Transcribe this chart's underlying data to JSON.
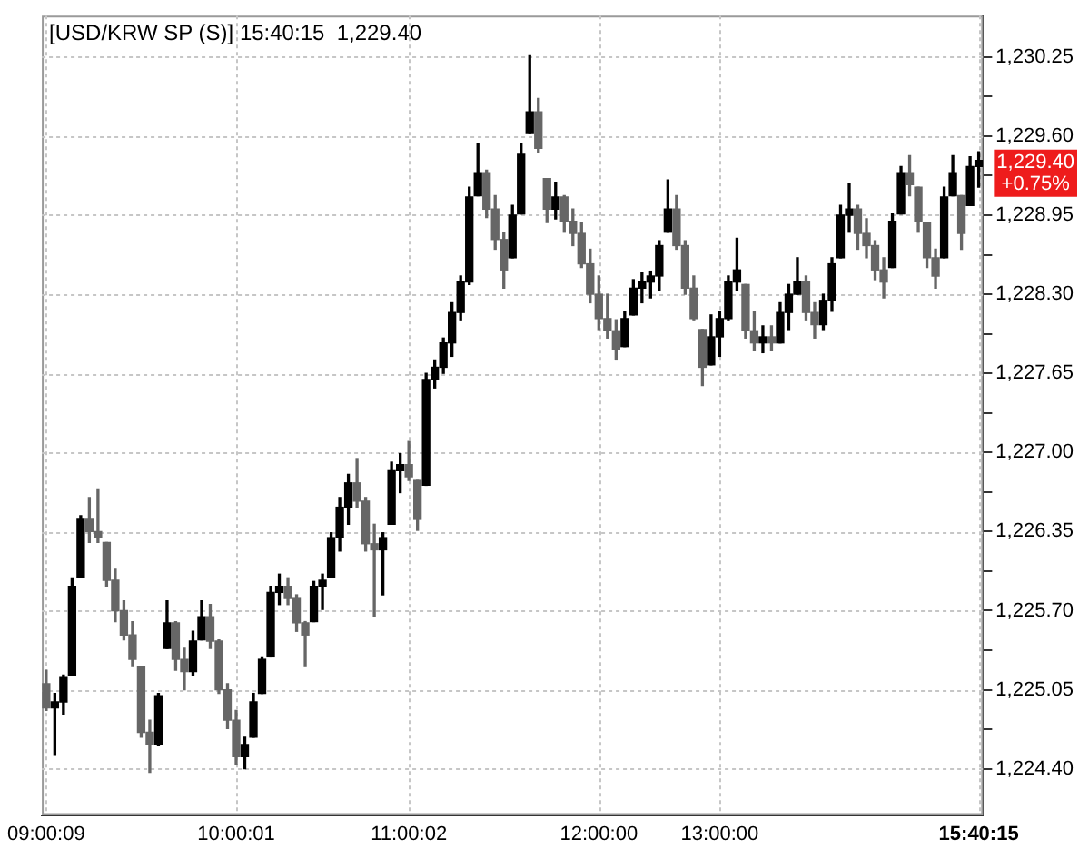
{
  "chart_data": {
    "type": "candlestick",
    "title": "[USD/KRW SP (S)] 15:40:15  1,229.40",
    "categories": [
      "09:00:09",
      null,
      null,
      null,
      null,
      null,
      null,
      null,
      null,
      null,
      null,
      null,
      null,
      null,
      null,
      null,
      null,
      null,
      null,
      null,
      null,
      null,
      "10:00:01",
      null,
      null,
      null,
      null,
      null,
      null,
      null,
      null,
      null,
      null,
      null,
      null,
      null,
      null,
      null,
      null,
      null,
      null,
      null,
      "11:00:02",
      null,
      null,
      null,
      null,
      null,
      null,
      null,
      null,
      null,
      null,
      null,
      null,
      null,
      null,
      null,
      null,
      null,
      null,
      null,
      null,
      null,
      "12:00:00",
      null,
      null,
      null,
      null,
      null,
      null,
      null,
      null,
      null,
      null,
      null,
      null,
      null,
      "13:00:00",
      null,
      null,
      null,
      null,
      null,
      null,
      null,
      null,
      null,
      null,
      null,
      null,
      null,
      null,
      null,
      null,
      null,
      null,
      null,
      null,
      null,
      null,
      null,
      null,
      null,
      null,
      null,
      null,
      null,
      "15:40:15"
    ],
    "ohlc": [
      [
        1225.1,
        1225.21,
        1224.88,
        1224.9
      ],
      [
        1224.9,
        1225.02,
        1224.51,
        1224.95
      ],
      [
        1224.95,
        1225.17,
        1224.85,
        1225.15
      ],
      [
        1225.17,
        1225.97,
        1225.17,
        1225.9
      ],
      [
        1225.97,
        1226.48,
        1225.97,
        1226.45
      ],
      [
        1226.45,
        1226.63,
        1226.26,
        1226.35
      ],
      [
        1226.35,
        1226.7,
        1226.26,
        1226.3
      ],
      [
        1226.26,
        1226.26,
        1225.9,
        1225.95
      ],
      [
        1225.95,
        1226.04,
        1225.61,
        1225.7
      ],
      [
        1225.7,
        1225.78,
        1225.46,
        1225.5
      ],
      [
        1225.5,
        1225.61,
        1225.24,
        1225.3
      ],
      [
        1225.24,
        1225.24,
        1224.66,
        1224.7
      ],
      [
        1224.7,
        1224.8,
        1224.37,
        1224.6
      ],
      [
        1224.6,
        1225.02,
        1224.59,
        1225.0
      ],
      [
        1225.39,
        1225.78,
        1225.39,
        1225.6
      ],
      [
        1225.6,
        1225.61,
        1225.21,
        1225.3
      ],
      [
        1225.3,
        1225.39,
        1225.05,
        1225.2
      ],
      [
        1225.2,
        1225.53,
        1225.17,
        1225.45
      ],
      [
        1225.46,
        1225.78,
        1225.46,
        1225.65
      ],
      [
        1225.65,
        1225.75,
        1225.39,
        1225.45
      ],
      [
        1225.45,
        1225.46,
        1225.02,
        1225.05
      ],
      [
        1225.05,
        1225.1,
        1224.73,
        1224.8
      ],
      [
        1224.8,
        1224.88,
        1224.44,
        1224.5
      ],
      [
        1224.5,
        1224.66,
        1224.4,
        1224.6
      ],
      [
        1224.66,
        1225.02,
        1224.66,
        1224.95
      ],
      [
        1225.02,
        1225.32,
        1225.02,
        1225.3
      ],
      [
        1225.32,
        1225.9,
        1225.32,
        1225.85
      ],
      [
        1225.85,
        1226.0,
        1225.75,
        1225.9
      ],
      [
        1225.9,
        1225.97,
        1225.75,
        1225.8
      ],
      [
        1225.8,
        1225.83,
        1225.53,
        1225.6
      ],
      [
        1225.6,
        1225.61,
        1225.24,
        1225.5
      ],
      [
        1225.61,
        1225.94,
        1225.61,
        1225.9
      ],
      [
        1225.9,
        1226.0,
        1225.71,
        1225.95
      ],
      [
        1225.97,
        1226.34,
        1225.97,
        1226.3
      ],
      [
        1226.3,
        1226.63,
        1226.19,
        1226.55
      ],
      [
        1226.55,
        1226.82,
        1226.41,
        1226.75
      ],
      [
        1226.75,
        1226.95,
        1226.55,
        1226.6
      ],
      [
        1226.6,
        1226.63,
        1226.19,
        1226.25
      ],
      [
        1226.25,
        1226.41,
        1225.65,
        1226.2
      ],
      [
        1226.2,
        1226.34,
        1225.83,
        1226.3
      ],
      [
        1226.41,
        1226.92,
        1226.41,
        1226.85
      ],
      [
        1226.85,
        1226.99,
        1226.67,
        1226.9
      ],
      [
        1226.9,
        1227.09,
        1226.77,
        1226.8
      ],
      [
        1226.77,
        1226.77,
        1226.36,
        1226.45
      ],
      [
        1226.73,
        1227.65,
        1226.73,
        1227.6
      ],
      [
        1227.6,
        1227.76,
        1227.53,
        1227.7
      ],
      [
        1227.7,
        1227.94,
        1227.65,
        1227.9
      ],
      [
        1227.9,
        1228.23,
        1227.79,
        1228.15
      ],
      [
        1228.15,
        1228.45,
        1228.09,
        1228.4
      ],
      [
        1228.4,
        1229.18,
        1228.38,
        1229.1
      ],
      [
        1229.11,
        1229.54,
        1229.11,
        1229.3
      ],
      [
        1229.3,
        1229.32,
        1228.93,
        1229.0
      ],
      [
        1229.0,
        1229.11,
        1228.67,
        1228.75
      ],
      [
        1228.75,
        1228.81,
        1228.35,
        1228.5
      ],
      [
        1228.6,
        1229.03,
        1228.6,
        1228.95
      ],
      [
        1228.96,
        1229.54,
        1228.96,
        1229.45
      ],
      [
        1229.62,
        1230.26,
        1229.62,
        1229.8
      ],
      [
        1229.8,
        1229.91,
        1229.47,
        1229.5
      ],
      [
        1229.25,
        1229.25,
        1228.89,
        1229.0
      ],
      [
        1229.0,
        1229.22,
        1228.92,
        1229.1
      ],
      [
        1229.1,
        1229.11,
        1228.81,
        1228.9
      ],
      [
        1228.9,
        1229.0,
        1228.7,
        1228.8
      ],
      [
        1228.8,
        1228.89,
        1228.52,
        1228.55
      ],
      [
        1228.55,
        1228.67,
        1228.23,
        1228.3
      ],
      [
        1228.3,
        1228.45,
        1228.01,
        1228.1
      ],
      [
        1228.1,
        1228.3,
        1227.94,
        1228.0
      ],
      [
        1228.0,
        1228.09,
        1227.76,
        1227.85
      ],
      [
        1227.87,
        1228.16,
        1227.87,
        1228.1
      ],
      [
        1228.13,
        1228.42,
        1228.13,
        1228.35
      ],
      [
        1228.35,
        1228.48,
        1228.23,
        1228.4
      ],
      [
        1228.4,
        1228.49,
        1228.27,
        1228.45
      ],
      [
        1228.45,
        1228.74,
        1228.33,
        1228.7
      ],
      [
        1228.81,
        1229.24,
        1228.81,
        1229.0
      ],
      [
        1229.0,
        1229.11,
        1228.67,
        1228.7
      ],
      [
        1228.7,
        1228.74,
        1228.3,
        1228.35
      ],
      [
        1228.35,
        1228.45,
        1228.09,
        1228.1
      ],
      [
        1228.01,
        1228.01,
        1227.55,
        1227.7
      ],
      [
        1227.72,
        1228.13,
        1227.72,
        1227.95
      ],
      [
        1227.95,
        1228.16,
        1227.79,
        1228.1
      ],
      [
        1228.1,
        1228.45,
        1228.09,
        1228.4
      ],
      [
        1228.4,
        1228.76,
        1228.33,
        1228.5
      ],
      [
        1228.38,
        1228.38,
        1227.94,
        1228.0
      ],
      [
        1228.0,
        1228.16,
        1227.84,
        1227.9
      ],
      [
        1227.9,
        1228.04,
        1227.82,
        1227.95
      ],
      [
        1227.95,
        1228.04,
        1227.84,
        1227.9
      ],
      [
        1227.9,
        1228.23,
        1227.9,
        1228.15
      ],
      [
        1228.15,
        1228.38,
        1228.01,
        1228.3
      ],
      [
        1228.3,
        1228.6,
        1228.3,
        1228.4
      ],
      [
        1228.4,
        1228.45,
        1228.09,
        1228.15
      ],
      [
        1228.15,
        1228.23,
        1227.94,
        1228.05
      ],
      [
        1228.05,
        1228.3,
        1228.01,
        1228.25
      ],
      [
        1228.25,
        1228.6,
        1228.16,
        1228.55
      ],
      [
        1228.6,
        1229.03,
        1228.6,
        1228.95
      ],
      [
        1228.95,
        1229.21,
        1228.81,
        1229.0
      ],
      [
        1229.0,
        1229.03,
        1228.67,
        1228.8
      ],
      [
        1228.8,
        1228.92,
        1228.6,
        1228.7
      ],
      [
        1228.7,
        1228.74,
        1228.42,
        1228.5
      ],
      [
        1228.5,
        1228.6,
        1228.27,
        1228.4
      ],
      [
        1228.52,
        1228.96,
        1228.52,
        1228.9
      ],
      [
        1228.96,
        1229.35,
        1228.96,
        1229.3
      ],
      [
        1229.3,
        1229.44,
        1229.11,
        1229.2
      ],
      [
        1229.18,
        1229.18,
        1228.81,
        1228.9
      ],
      [
        1228.89,
        1228.89,
        1228.52,
        1228.6
      ],
      [
        1228.6,
        1228.67,
        1228.35,
        1228.45
      ],
      [
        1228.6,
        1229.18,
        1228.6,
        1229.1
      ],
      [
        1229.11,
        1229.44,
        1229.11,
        1229.3
      ],
      [
        1229.11,
        1229.11,
        1228.67,
        1228.8
      ],
      [
        1229.03,
        1229.43,
        1229.03,
        1229.35
      ],
      [
        1229.35,
        1229.47,
        1229.18,
        1229.4
      ]
    ],
    "colors": [
      "#666666",
      "#000000",
      "#000000",
      "#000000",
      "#000000",
      "#666666",
      "#666666",
      "#666666",
      "#666666",
      "#666666",
      "#666666",
      "#666666",
      "#666666",
      "#000000",
      "#000000",
      "#666666",
      "#666666",
      "#000000",
      "#000000",
      "#666666",
      "#666666",
      "#666666",
      "#666666",
      "#000000",
      "#000000",
      "#000000",
      "#000000",
      "#000000",
      "#666666",
      "#666666",
      "#666666",
      "#000000",
      "#000000",
      "#000000",
      "#000000",
      "#000000",
      "#666666",
      "#666666",
      "#666666",
      "#000000",
      "#000000",
      "#000000",
      "#666666",
      "#666666",
      "#000000",
      "#000000",
      "#000000",
      "#000000",
      "#000000",
      "#000000",
      "#000000",
      "#666666",
      "#666666",
      "#666666",
      "#000000",
      "#000000",
      "#000000",
      "#666666",
      "#666666",
      "#000000",
      "#666666",
      "#666666",
      "#666666",
      "#666666",
      "#666666",
      "#666666",
      "#666666",
      "#000000",
      "#000000",
      "#000000",
      "#000000",
      "#000000",
      "#000000",
      "#666666",
      "#666666",
      "#666666",
      "#666666",
      "#000000",
      "#000000",
      "#000000",
      "#000000",
      "#666666",
      "#666666",
      "#000000",
      "#666666",
      "#000000",
      "#000000",
      "#000000",
      "#666666",
      "#666666",
      "#000000",
      "#000000",
      "#000000",
      "#000000",
      "#666666",
      "#666666",
      "#666666",
      "#666666",
      "#000000",
      "#000000",
      "#666666",
      "#666666",
      "#666666",
      "#666666",
      "#000000",
      "#000000",
      "#666666",
      "#000000",
      "#000000"
    ],
    "ylim": [
      1224.02,
      1230.59
    ],
    "yticks": [
      {
        "value": 1224.4,
        "label": "1,224.40"
      },
      {
        "value": 1224.725,
        "label": null
      },
      {
        "value": 1225.05,
        "label": "1,225.05"
      },
      {
        "value": 1225.375,
        "label": null
      },
      {
        "value": 1225.7,
        "label": "1,225.70"
      },
      {
        "value": 1226.025,
        "label": null
      },
      {
        "value": 1226.35,
        "label": "1,226.35"
      },
      {
        "value": 1226.675,
        "label": null
      },
      {
        "value": 1227.0,
        "label": "1,227.00"
      },
      {
        "value": 1227.325,
        "label": null
      },
      {
        "value": 1227.65,
        "label": "1,227.65"
      },
      {
        "value": 1227.975,
        "label": null
      },
      {
        "value": 1228.3,
        "label": "1,228.30"
      },
      {
        "value": 1228.625,
        "label": null
      },
      {
        "value": 1228.95,
        "label": "1,228.95"
      },
      {
        "value": 1229.275,
        "label": null
      },
      {
        "value": 1229.6,
        "label": "1,229.60"
      },
      {
        "value": 1229.925,
        "label": null
      },
      {
        "value": 1230.25,
        "label": "1,230.25"
      }
    ],
    "grid": true,
    "annotations": [
      "1,229.40\n+0.75%"
    ]
  }
}
